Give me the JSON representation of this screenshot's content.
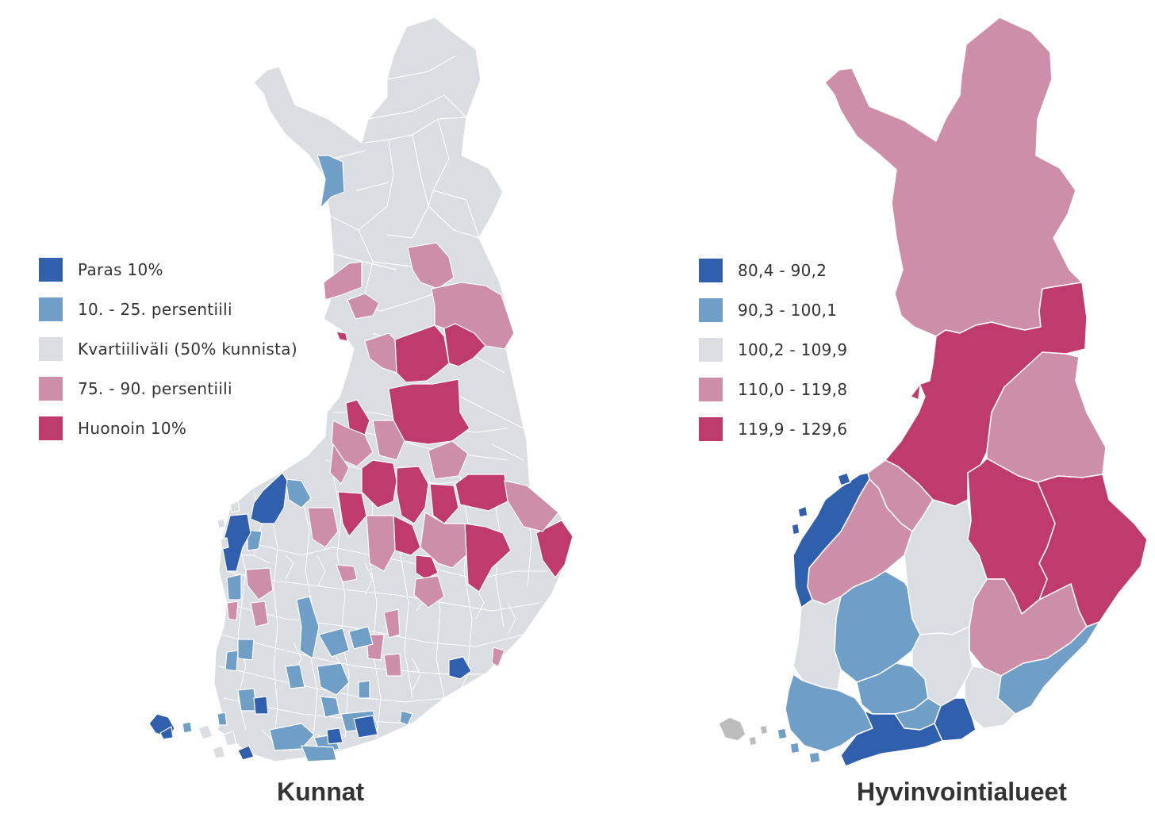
{
  "palette": {
    "best": "#2f5fad",
    "good": "#6f9fc6",
    "middle": "#dadde1",
    "poor": "#cd8ea9",
    "worst": "#bf3b6d",
    "nodata": "#bcbcbc",
    "border": "#ffffff"
  },
  "municipalities": {
    "title": "Kunnat",
    "legend": [
      {
        "label": "Paras 10%",
        "class": "best"
      },
      {
        "label": "10. - 25. persentiili",
        "class": "good"
      },
      {
        "label": "Kvartiiliväli (50% kunnista)",
        "class": "middle"
      },
      {
        "label": "75. - 90. persentiili",
        "class": "poor"
      },
      {
        "label": "Huonoin 10%",
        "class": "worst"
      }
    ]
  },
  "wellbeing_areas": {
    "title": "Hyvinvointialueet",
    "legend": [
      {
        "label": "80,4 - 90,2",
        "class": "best"
      },
      {
        "label": "90,3 - 100,1",
        "class": "good"
      },
      {
        "label": "100,2 - 109,9",
        "class": "middle"
      },
      {
        "label": "110,0 - 119,8",
        "class": "poor"
      },
      {
        "label": "119,9 - 129,6",
        "class": "worst"
      }
    ],
    "regions": [
      {
        "id": "lappi",
        "class": "poor"
      },
      {
        "id": "pohjois-pohjanmaa",
        "class": "worst"
      },
      {
        "id": "kainuu",
        "class": "poor"
      },
      {
        "id": "pohjois-savo",
        "class": "worst"
      },
      {
        "id": "pohjois-karjala",
        "class": "worst"
      },
      {
        "id": "keski-pohjanmaa",
        "class": "poor"
      },
      {
        "id": "etela-pohjanmaa",
        "class": "poor"
      },
      {
        "id": "pohjanmaa",
        "class": "best"
      },
      {
        "id": "keski-suomi",
        "class": "middle"
      },
      {
        "id": "etela-savo",
        "class": "poor"
      },
      {
        "id": "satakunta",
        "class": "middle"
      },
      {
        "id": "pirkanmaa",
        "class": "good"
      },
      {
        "id": "varsinais-suomi",
        "class": "good"
      },
      {
        "id": "kanta-hame",
        "class": "good"
      },
      {
        "id": "paijat-hame",
        "class": "middle"
      },
      {
        "id": "kymenlaakso",
        "class": "middle"
      },
      {
        "id": "etela-karjala",
        "class": "good"
      },
      {
        "id": "uusimaa",
        "class": "best"
      },
      {
        "id": "ita-uusimaa",
        "class": "best"
      },
      {
        "id": "vantaa-kerava",
        "class": "good"
      },
      {
        "id": "ahvenanmaa",
        "class": "nodata"
      }
    ]
  }
}
